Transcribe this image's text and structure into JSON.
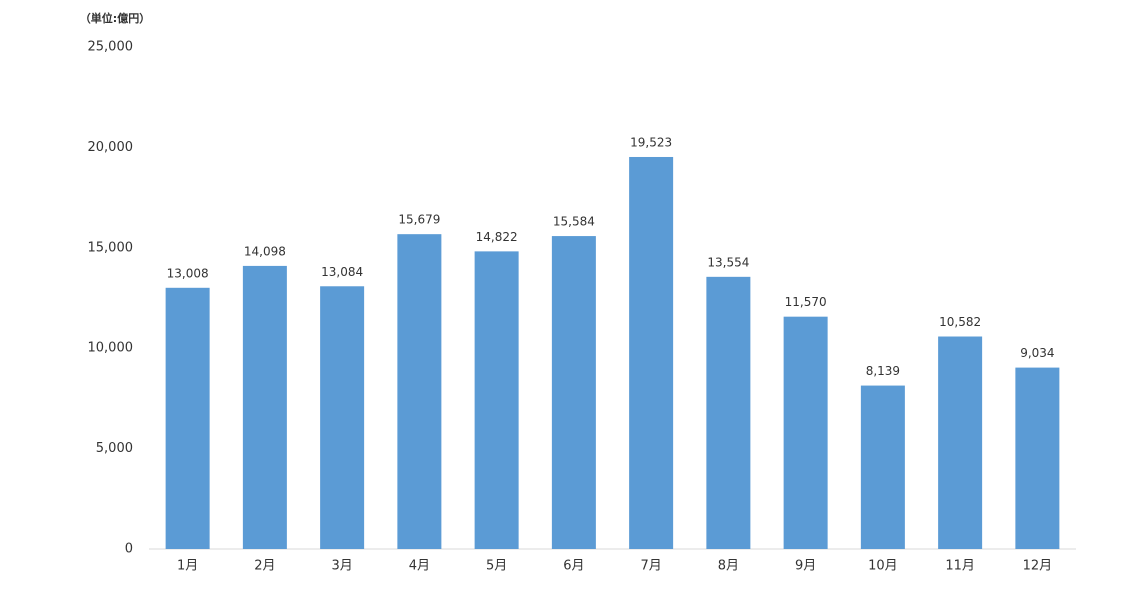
{
  "chart_data": {
    "type": "bar",
    "ylabel": "（単位:億円）",
    "categories": [
      "1月",
      "2月",
      "3月",
      "4月",
      "5月",
      "6月",
      "7月",
      "8月",
      "9月",
      "10月",
      "11月",
      "12月"
    ],
    "values": [
      13008,
      14098,
      13084,
      15679,
      14822,
      15584,
      19523,
      13554,
      11570,
      8139,
      10582,
      9034
    ],
    "value_labels": [
      "13,008",
      "14,098",
      "13,084",
      "15,679",
      "14,822",
      "15,584",
      "19,523",
      "13,554",
      "11,570",
      "8,139",
      "10,582",
      "9,034"
    ],
    "color": "#5b9bd5",
    "ylim": [
      0,
      25000
    ],
    "yticks": [
      0,
      {
        "value": 5000,
        "label": "5,000"
      },
      {
        "value": 10000,
        "label": "10,000"
      },
      {
        "value": 15000,
        "label": "15,000"
      },
      {
        "value": 20000,
        "label": "20,000"
      },
      {
        "value": 25000,
        "label": "25,000"
      }
    ],
    "grid": false
  }
}
